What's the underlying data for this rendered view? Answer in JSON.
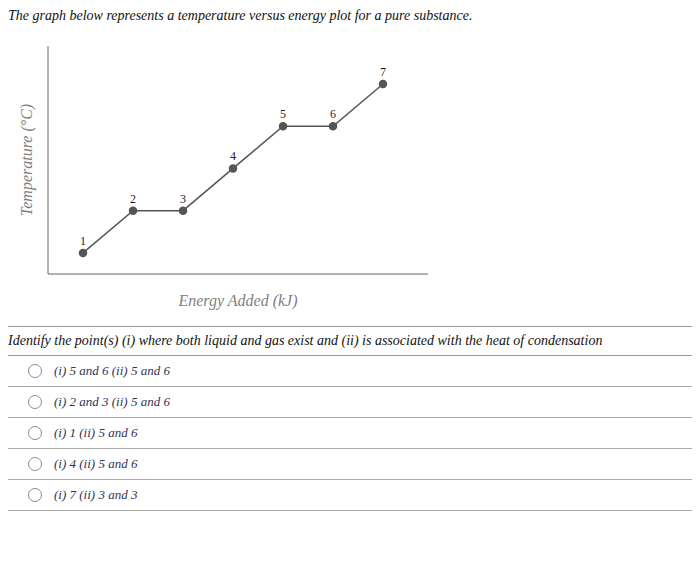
{
  "chart_data": {
    "type": "line",
    "title": "The graph below represents a temperature versus energy plot for a pure substance.",
    "x_label": "Energy Added (kJ)",
    "y_label": "Temperature (°C)",
    "x": [
      1,
      2,
      3,
      4,
      5,
      6,
      7
    ],
    "values": [
      1,
      3,
      3,
      5,
      7,
      7,
      9
    ],
    "color": "#555555",
    "marker": "circle",
    "xlim": [
      0.3,
      7.9
    ],
    "ylim": [
      0.0,
      10.8
    ],
    "xticks": [],
    "yticks": [],
    "tick_labels": false,
    "grid": false,
    "annotations": [
      {
        "text": "1",
        "x": 1,
        "y": 1
      },
      {
        "text": "2",
        "x": 2,
        "y": 3
      },
      {
        "text": "3",
        "x": 3,
        "y": 3
      },
      {
        "text": "4",
        "x": 4,
        "y": 5
      },
      {
        "text": "5",
        "x": 5,
        "y": 7
      },
      {
        "text": "6",
        "x": 6,
        "y": 7
      },
      {
        "text": "7",
        "x": 7,
        "y": 9
      }
    ],
    "question": "Identify the point(s) (i) where both liquid and gas exist and (ii) is associated with the heat of condensation",
    "options": [
      "(i) 5 and 6 (ii) 5 and 6",
      "(i) 2 and 3 (ii) 5 and 6",
      "(i) 1 (ii) 5 and 6",
      "(i) 4 (ii) 5 and 6",
      "(i) 7 (ii) 3 and 3"
    ]
  }
}
